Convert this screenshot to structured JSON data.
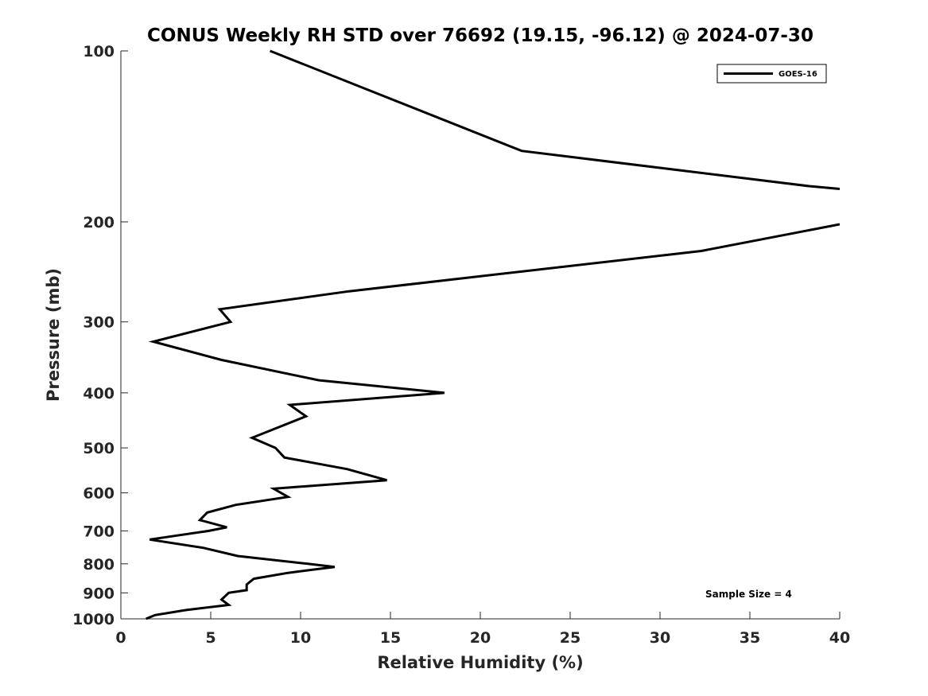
{
  "chart_data": {
    "type": "line",
    "title": "CONUS Weekly RH STD over 76692 (19.15, -96.12) @ 2024-07-30",
    "xlabel": "Relative Humidity (%)",
    "ylabel": "Pressure (mb)",
    "xlim": [
      0,
      40
    ],
    "ylim": [
      1000,
      100
    ],
    "yscale": "log",
    "y_reversed": true,
    "xticks": [
      "0",
      "5",
      "10",
      "15",
      "20",
      "25",
      "30",
      "35",
      "40"
    ],
    "yticks": [
      "100",
      "200",
      "300",
      "400",
      "500",
      "600",
      "700",
      "800",
      "900",
      "1000"
    ],
    "grid": false,
    "legend_position": "top-right",
    "annotation": "Sample Size = 4",
    "series": [
      {
        "name": "GOES-16",
        "color": "#000000",
        "x": [
          8.3,
          22.3,
          38.3,
          40.0,
          null,
          40.0,
          32.3,
          12.7,
          5.5,
          6.1,
          1.8,
          5.6,
          11.0,
          18.0,
          9.4,
          10.3,
          7.3,
          8.6,
          9.1,
          12.6,
          14.8,
          8.5,
          9.3,
          6.4,
          4.8,
          4.4,
          5.9,
          4.9,
          1.6,
          4.6,
          6.5,
          10.4,
          11.9,
          9.3,
          7.4,
          7.0,
          7.0,
          6.0,
          5.6,
          6.0,
          3.6,
          1.9,
          1.4
        ],
        "y": [
          100,
          150,
          173,
          175,
          null,
          202,
          225,
          265,
          285,
          300,
          325,
          350,
          380,
          400,
          420,
          440,
          480,
          500,
          520,
          545,
          570,
          590,
          610,
          630,
          650,
          670,
          690,
          700,
          725,
          750,
          775,
          800,
          810,
          830,
          850,
          870,
          890,
          900,
          925,
          945,
          965,
          985,
          1000
        ]
      }
    ]
  }
}
